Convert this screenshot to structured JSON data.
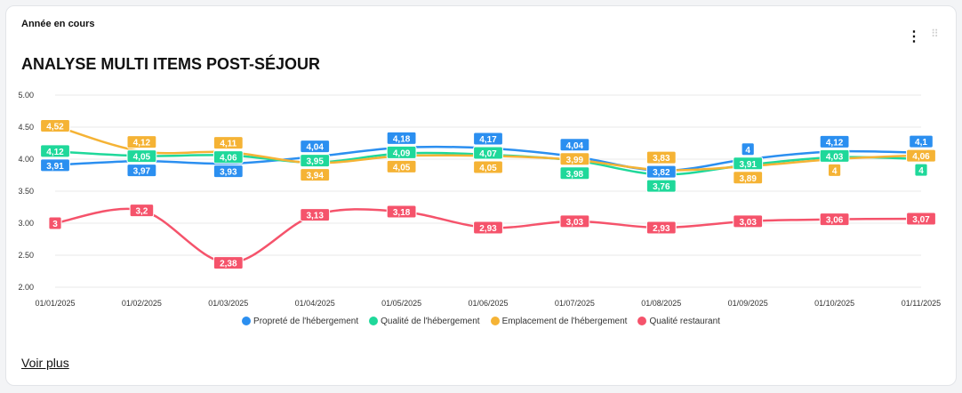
{
  "card": {
    "subtitle": "Année en cours",
    "title": "ANALYSE MULTI ITEMS POST-SÉJOUR",
    "more_link": "Voir plus",
    "menu_icon": "more-vertical-icon",
    "drag_icon": "drag-handle-icon"
  },
  "chart_data": {
    "type": "line",
    "title": "ANALYSE MULTI ITEMS POST-SÉJOUR",
    "categories": [
      "01/01/2025",
      "01/02/2025",
      "01/03/2025",
      "01/04/2025",
      "01/05/2025",
      "01/06/2025",
      "01/07/2025",
      "01/08/2025",
      "01/09/2025",
      "01/10/2025",
      "01/11/2025"
    ],
    "yticks": [
      "2.00",
      "2.50",
      "3.00",
      "3.50",
      "4.00",
      "4.50",
      "5.00"
    ],
    "ylim": [
      2,
      5
    ],
    "grid": true,
    "legend": "bottom",
    "series": [
      {
        "name": "Propreté de l'hébergement",
        "color": "#2b8ff0",
        "values": [
          3.91,
          3.97,
          3.93,
          4.04,
          4.18,
          4.17,
          4.04,
          3.82,
          4,
          4.12,
          4.1
        ],
        "labels": [
          "3,91",
          "3,97",
          "3,93",
          "4,04",
          "4,18",
          "4,17",
          "4,04",
          "3,82",
          "4",
          "4,12",
          "4,1"
        ]
      },
      {
        "name": "Qualité de l'hébergement",
        "color": "#1fd89a",
        "values": [
          4.12,
          4.05,
          4.06,
          3.95,
          4.09,
          4.07,
          3.98,
          3.76,
          3.91,
          4.03,
          4
        ],
        "labels": [
          "4,12",
          "4,05",
          "4,06",
          "3,95",
          "4,09",
          "4,07",
          "3,98",
          "3,76",
          "3,91",
          "4,03",
          "4"
        ]
      },
      {
        "name": "Emplacement de l'hébergement",
        "color": "#f5b335",
        "values": [
          4.52,
          4.12,
          4.11,
          3.94,
          4.05,
          4.05,
          3.99,
          3.83,
          3.89,
          4,
          4.06
        ],
        "labels": [
          "4,52",
          "4,12",
          "4,11",
          "3,94",
          "4,05",
          "4,05",
          "3,99",
          "3,83",
          "3,89",
          "4",
          "4,06"
        ]
      },
      {
        "name": "Qualité restaurant",
        "color": "#f5536b",
        "values": [
          3,
          3.2,
          2.38,
          3.13,
          3.18,
          2.93,
          3.03,
          2.93,
          3.03,
          3.06,
          3.07
        ],
        "labels": [
          "3",
          "3,2",
          "2,38",
          "3,13",
          "3,18",
          "2,93",
          "3,03",
          "2,93",
          "3,03",
          "3,06",
          "3,07"
        ]
      }
    ]
  }
}
